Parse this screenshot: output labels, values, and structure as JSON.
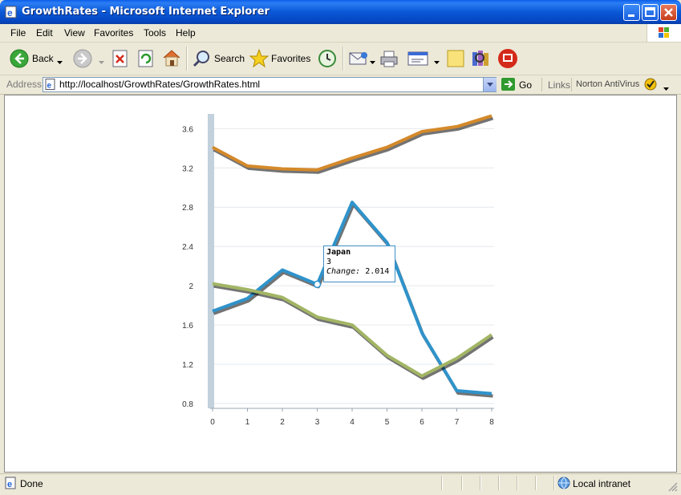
{
  "window": {
    "title": "GrowthRates - Microsoft Internet Explorer"
  },
  "menu": {
    "items": [
      "File",
      "Edit",
      "View",
      "Favorites",
      "Tools",
      "Help"
    ]
  },
  "toolbar": {
    "back_label": "Back",
    "search_label": "Search",
    "favorites_label": "Favorites"
  },
  "address": {
    "label": "Address",
    "url": "http://localhost/GrowthRates/GrowthRates.html",
    "go_label": "Go",
    "links_label": "Links",
    "norton_label": "Norton AntiVirus"
  },
  "status": {
    "text": "Done",
    "zone": "Local intranet"
  },
  "tooltip": {
    "series": "Japan",
    "x": "3",
    "change_label": "Change:",
    "change_value": "2.014"
  },
  "chart_data": {
    "type": "line",
    "x": [
      0,
      1,
      2,
      3,
      4,
      5,
      6,
      7,
      8
    ],
    "xticks": [
      "0",
      "1",
      "2",
      "3",
      "4",
      "5",
      "6",
      "7",
      "8"
    ],
    "yticks": [
      "0.8",
      "1.2",
      "1.6",
      "2",
      "2.4",
      "2.8",
      "3.2",
      "3.6"
    ],
    "ylim": [
      0.75,
      3.75
    ],
    "grid": true,
    "series": [
      {
        "name": "",
        "color": "#d4892a",
        "values": [
          3.41,
          3.22,
          3.19,
          3.18,
          3.3,
          3.41,
          3.57,
          3.62,
          3.73
        ]
      },
      {
        "name": "Japan",
        "color": "#2f93cb",
        "values": [
          1.74,
          1.87,
          2.16,
          2.014,
          2.85,
          2.44,
          1.52,
          0.93,
          0.9
        ]
      },
      {
        "name": "",
        "color": "#a2b564",
        "values": [
          2.02,
          1.96,
          1.88,
          1.68,
          1.6,
          1.29,
          1.08,
          1.26,
          1.5
        ]
      }
    ]
  }
}
